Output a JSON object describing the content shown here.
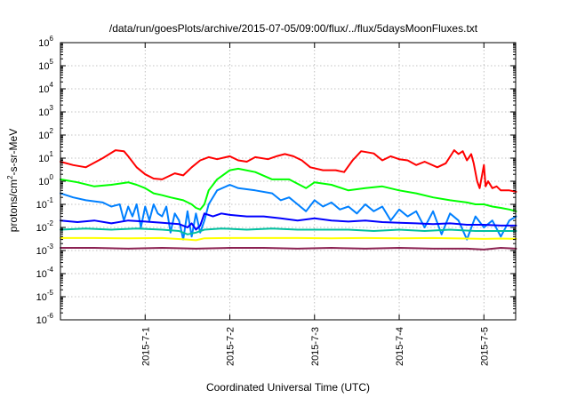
{
  "chart_data": {
    "type": "line",
    "title": "/data/run/goesPlots/archive/2015-07-05/09:00/flux/../flux/5daysMoonFluxes.txt",
    "xlabel": "Coordinated Universal Time (UTC)",
    "ylabel": "protons/cm2-s-sr-MeV",
    "ylabel_parts": {
      "pre": "protons/cm",
      "sup": "2",
      "post": "-s-sr-MeV"
    },
    "yscale": "log",
    "ylim_exponents": [
      -6,
      6
    ],
    "ytick_labels": [
      {
        "base": "10",
        "exp": "-6"
      },
      {
        "base": "10",
        "exp": "-5"
      },
      {
        "base": "10",
        "exp": "-4"
      },
      {
        "base": "10",
        "exp": "-3"
      },
      {
        "base": "10",
        "exp": "-2"
      },
      {
        "base": "10",
        "exp": "-1"
      },
      {
        "base": "10",
        "exp": "0"
      },
      {
        "base": "10",
        "exp": "1"
      },
      {
        "base": "10",
        "exp": "2"
      },
      {
        "base": "10",
        "exp": "3"
      },
      {
        "base": "10",
        "exp": "4"
      },
      {
        "base": "10",
        "exp": "5"
      },
      {
        "base": "10",
        "exp": "6"
      }
    ],
    "x_unit": "day",
    "xlim": [
      "2015-06-30 00:00",
      "2015-07-05 09:00"
    ],
    "xticks": [
      {
        "label": "2015-7-1",
        "day": 1
      },
      {
        "label": "2015-7-2",
        "day": 2
      },
      {
        "label": "2015-7-3",
        "day": 3
      },
      {
        "label": "2015-7-4",
        "day": 4
      },
      {
        "label": "2015-7-5",
        "day": 5
      }
    ],
    "grid": true,
    "legend": "none",
    "series": [
      {
        "color": "#ff0000",
        "x": [
          0.0,
          0.15,
          0.3,
          0.5,
          0.65,
          0.75,
          0.8,
          0.9,
          1.0,
          1.1,
          1.2,
          1.35,
          1.45,
          1.55,
          1.65,
          1.75,
          1.85,
          2.0,
          2.1,
          2.2,
          2.3,
          2.45,
          2.55,
          2.65,
          2.75,
          2.85,
          2.95,
          3.1,
          3.25,
          3.35,
          3.45,
          3.55,
          3.7,
          3.8,
          3.9,
          4.0,
          4.1,
          4.2,
          4.3,
          4.45,
          4.55,
          4.65,
          4.7,
          4.75,
          4.8,
          4.85,
          4.88,
          4.92,
          4.95,
          5.0,
          5.02,
          5.05,
          5.1,
          5.15,
          5.2,
          5.3,
          5.38
        ],
        "y": [
          7,
          5,
          4,
          10,
          22,
          20,
          12,
          4,
          2,
          1.3,
          1.2,
          2.2,
          1.8,
          4,
          8,
          11,
          9,
          12,
          8,
          7,
          11,
          9,
          12,
          15,
          12,
          8,
          4,
          3,
          3,
          2.5,
          8,
          20,
          16,
          8,
          12,
          9,
          8,
          5,
          7,
          4,
          6,
          22,
          15,
          20,
          8,
          15,
          6,
          1,
          0.5,
          5,
          0.6,
          1,
          0.5,
          0.6,
          0.4,
          0.4,
          0.35
        ]
      },
      {
        "color": "#00ff00",
        "x": [
          0.0,
          0.2,
          0.4,
          0.6,
          0.8,
          0.9,
          1.0,
          1.1,
          1.2,
          1.3,
          1.45,
          1.55,
          1.6,
          1.65,
          1.7,
          1.75,
          1.85,
          2.0,
          2.1,
          2.3,
          2.5,
          2.7,
          2.9,
          3.0,
          3.2,
          3.4,
          3.6,
          3.8,
          4.0,
          4.2,
          4.4,
          4.6,
          4.8,
          4.9,
          5.0,
          5.1,
          5.2,
          5.3,
          5.38
        ],
        "y": [
          1.2,
          0.9,
          0.6,
          0.7,
          0.9,
          0.7,
          0.5,
          0.3,
          0.25,
          0.2,
          0.15,
          0.1,
          0.07,
          0.06,
          0.1,
          0.4,
          1.2,
          3,
          3.5,
          2.5,
          1.2,
          1.2,
          0.5,
          0.9,
          0.7,
          0.4,
          0.5,
          0.6,
          0.4,
          0.3,
          0.2,
          0.15,
          0.12,
          0.1,
          0.1,
          0.08,
          0.07,
          0.06,
          0.05
        ]
      },
      {
        "color": "#0080ff",
        "x": [
          0.0,
          0.15,
          0.3,
          0.5,
          0.6,
          0.7,
          0.75,
          0.8,
          0.85,
          0.9,
          0.95,
          1.0,
          1.05,
          1.1,
          1.15,
          1.2,
          1.25,
          1.3,
          1.35,
          1.4,
          1.45,
          1.5,
          1.55,
          1.6,
          1.65,
          1.7,
          1.75,
          1.85,
          2.0,
          2.1,
          2.3,
          2.5,
          2.6,
          2.7,
          2.8,
          2.9,
          3.0,
          3.1,
          3.2,
          3.3,
          3.4,
          3.5,
          3.6,
          3.7,
          3.8,
          3.9,
          4.0,
          4.1,
          4.2,
          4.3,
          4.4,
          4.5,
          4.6,
          4.7,
          4.8,
          4.9,
          5.0,
          5.1,
          5.2,
          5.3,
          5.38
        ],
        "y": [
          0.3,
          0.2,
          0.15,
          0.12,
          0.08,
          0.1,
          0.02,
          0.08,
          0.03,
          0.1,
          0.01,
          0.08,
          0.02,
          0.1,
          0.04,
          0.03,
          0.08,
          0.006,
          0.04,
          0.02,
          0.003,
          0.05,
          0.004,
          0.04,
          0.006,
          0.02,
          0.1,
          0.4,
          0.7,
          0.5,
          0.4,
          0.3,
          0.15,
          0.2,
          0.1,
          0.05,
          0.15,
          0.08,
          0.12,
          0.06,
          0.08,
          0.04,
          0.1,
          0.05,
          0.08,
          0.02,
          0.06,
          0.03,
          0.05,
          0.01,
          0.05,
          0.005,
          0.04,
          0.02,
          0.003,
          0.03,
          0.01,
          0.02,
          0.004,
          0.02,
          0.03
        ]
      },
      {
        "color": "#0000ff",
        "x": [
          0.0,
          0.2,
          0.4,
          0.6,
          0.8,
          1.0,
          1.2,
          1.4,
          1.5,
          1.55,
          1.6,
          1.65,
          1.7,
          1.8,
          1.9,
          2.0,
          2.2,
          2.4,
          2.6,
          2.8,
          3.0,
          3.2,
          3.4,
          3.6,
          3.8,
          4.0,
          4.2,
          4.4,
          4.6,
          4.8,
          5.0,
          5.2,
          5.38
        ],
        "y": [
          0.02,
          0.017,
          0.02,
          0.015,
          0.02,
          0.018,
          0.016,
          0.014,
          0.01,
          0.015,
          0.008,
          0.012,
          0.04,
          0.03,
          0.04,
          0.035,
          0.03,
          0.03,
          0.025,
          0.02,
          0.025,
          0.02,
          0.018,
          0.02,
          0.017,
          0.016,
          0.015,
          0.014,
          0.015,
          0.013,
          0.013,
          0.012,
          0.012
        ]
      },
      {
        "color": "#00c0a0",
        "x": [
          0.0,
          0.3,
          0.6,
          0.9,
          1.2,
          1.4,
          1.5,
          1.6,
          1.7,
          1.9,
          2.2,
          2.5,
          2.8,
          3.1,
          3.4,
          3.7,
          4.0,
          4.3,
          4.6,
          4.9,
          5.2,
          5.38
        ],
        "y": [
          0.008,
          0.009,
          0.008,
          0.009,
          0.008,
          0.007,
          0.005,
          0.006,
          0.008,
          0.009,
          0.008,
          0.009,
          0.008,
          0.008,
          0.008,
          0.007,
          0.008,
          0.007,
          0.008,
          0.007,
          0.007,
          0.007
        ]
      },
      {
        "color": "#ffff00",
        "x": [
          0.0,
          0.4,
          0.8,
          1.2,
          1.5,
          1.6,
          1.7,
          2.0,
          2.4,
          2.8,
          3.2,
          3.6,
          4.0,
          4.4,
          4.8,
          5.0,
          5.2,
          5.38
        ],
        "y": [
          0.0035,
          0.0035,
          0.0034,
          0.0035,
          0.003,
          0.0028,
          0.0034,
          0.0035,
          0.0035,
          0.0035,
          0.0034,
          0.0035,
          0.0034,
          0.0035,
          0.0033,
          0.0032,
          0.0033,
          0.0032
        ]
      },
      {
        "color": "#8b2252",
        "x": [
          0.0,
          0.4,
          0.8,
          1.2,
          1.6,
          2.0,
          2.4,
          2.8,
          3.2,
          3.6,
          4.0,
          4.4,
          4.8,
          5.0,
          5.2,
          5.38
        ],
        "y": [
          0.0013,
          0.0013,
          0.0012,
          0.0013,
          0.0012,
          0.0013,
          0.0013,
          0.0012,
          0.0013,
          0.0012,
          0.0013,
          0.0012,
          0.0012,
          0.0011,
          0.0013,
          0.0012
        ]
      }
    ]
  }
}
